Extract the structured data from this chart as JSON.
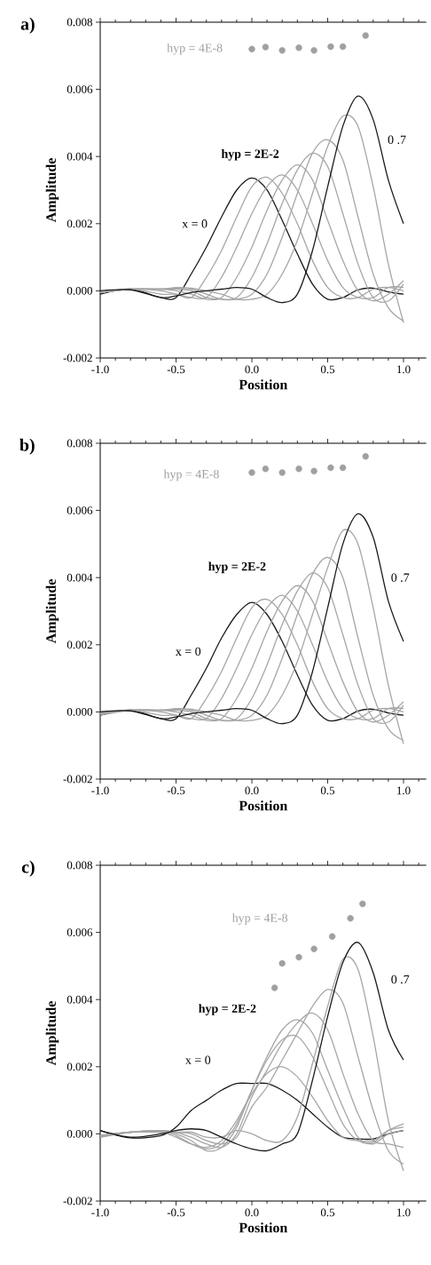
{
  "chart_data": [
    {
      "type": "line",
      "title": "a)",
      "xlabel": "Position",
      "ylabel": "Amplitude",
      "x": [
        -1,
        -0.8,
        -0.6,
        -0.5,
        -0.4,
        -0.3,
        -0.2,
        -0.1,
        0,
        0.1,
        0.2,
        0.3,
        0.4,
        0.5,
        0.6,
        0.7,
        0.8,
        0.9,
        1.0
      ],
      "xlim": [
        -1,
        1.15
      ],
      "ylim": [
        -0.002,
        0.008
      ],
      "xticks": [
        {
          "value": -1,
          "label": "-1.0"
        },
        {
          "value": -0.9,
          "label": null
        },
        {
          "value": -0.8,
          "label": null
        },
        {
          "value": -0.7,
          "label": null
        },
        {
          "value": -0.6,
          "label": null
        },
        {
          "value": -0.5,
          "label": "-0.5"
        },
        {
          "value": -0.4,
          "label": null
        },
        {
          "value": -0.3,
          "label": null
        },
        {
          "value": -0.2,
          "label": null
        },
        {
          "value": -0.1,
          "label": null
        },
        {
          "value": 0,
          "label": "0.0"
        },
        {
          "value": 0.1,
          "label": null
        },
        {
          "value": 0.2,
          "label": null
        },
        {
          "value": 0.3,
          "label": null
        },
        {
          "value": 0.4,
          "label": null
        },
        {
          "value": 0.5,
          "label": "0.5"
        },
        {
          "value": 0.6,
          "label": null
        },
        {
          "value": 0.7,
          "label": null
        },
        {
          "value": 0.8,
          "label": null
        },
        {
          "value": 0.9,
          "label": null
        },
        {
          "value": 1.0,
          "label": "1.0"
        },
        {
          "value": 1.1,
          "label": null
        }
      ],
      "yticks": [
        {
          "value": -0.002,
          "label": "-0.002"
        },
        {
          "value": 0,
          "label": "0.000"
        },
        {
          "value": 0.002,
          "label": "0.002"
        },
        {
          "value": 0.004,
          "label": "0.004"
        },
        {
          "value": 0.006,
          "label": "0.006"
        },
        {
          "value": 0.008,
          "label": "0.008"
        }
      ],
      "series": [
        {
          "color": "#1a1a1a",
          "values": [
            -0.0001,
            5e-05,
            -0.0002,
            -0.0002,
            0.0005,
            0.0013,
            0.0022,
            0.003,
            0.00336,
            0.003,
            0.0021,
            0.0011,
            0.0002,
            -0.00025,
            -0.0002,
            3e-05,
            8e-05,
            -3e-05,
            -0.0001
          ]
        },
        {
          "color": "#a6a6a6",
          "values": [
            -5e-05,
            5e-05,
            -0.0001,
            -0.0001,
            -0.0002,
            0.0004,
            0.0012,
            0.0022,
            0.0031,
            0.00338,
            0.0029,
            0.002,
            0.0009,
            0.0001,
            -0.0002,
            -0.0002,
            5e-05,
            0.0001,
            0
          ]
        },
        {
          "color": "#a6a6a6",
          "values": [
            -5e-05,
            5e-05,
            0,
            -0.0001,
            -0.0002,
            -0.0002,
            0.0004,
            0.0013,
            0.0023,
            0.0031,
            0.00345,
            0.003,
            0.002,
            0.0009,
            0.0001,
            -0.0002,
            -0.0002,
            0.0001,
            0.0001
          ]
        },
        {
          "color": "#a6a6a6",
          "values": [
            -5e-05,
            5e-05,
            5e-05,
            0,
            -0.0001,
            -0.00025,
            -0.0002,
            0.0004,
            0.0013,
            0.0024,
            0.0033,
            0.00375,
            0.0033,
            0.0021,
            0.0009,
            0,
            -0.0003,
            -0.0001,
            0.0003
          ]
        },
        {
          "color": "#a6a6a6",
          "values": [
            -5e-05,
            5e-05,
            5e-05,
            5e-05,
            0,
            -0.0002,
            -0.00025,
            -0.0002,
            0.0004,
            0.0014,
            0.0026,
            0.0036,
            0.0041,
            0.0037,
            0.0023,
            0.0008,
            -0.0002,
            -0.0003,
            0.0002
          ]
        },
        {
          "color": "#a6a6a6",
          "values": [
            -5e-05,
            5e-05,
            5e-05,
            8e-05,
            5e-05,
            -0.0001,
            -0.00025,
            -0.00025,
            -0.0001,
            0.0005,
            0.0016,
            0.0029,
            0.0041,
            0.0045,
            0.0039,
            0.0022,
            0.0005,
            -0.0005,
            -0.0009
          ]
        },
        {
          "color": "#a6a6a6",
          "values": [
            -5e-05,
            5e-05,
            5e-05,
            0.0001,
            8e-05,
            0,
            -0.0001,
            -0.00025,
            -0.00025,
            -0.0001,
            0.0005,
            0.0015,
            0.0029,
            0.0043,
            0.0052,
            0.0049,
            0.0031,
            0.0008,
            -0.00095
          ]
        },
        {
          "color": "#1a1a1a",
          "values": [
            0,
            3e-05,
            -0.0002,
            -0.00015,
            -5e-05,
            0,
            5e-05,
            0.0001,
            5e-05,
            -0.0002,
            -0.00035,
            -0.0001,
            0.0012,
            0.0031,
            0.0049,
            0.0058,
            0.0051,
            0.0033,
            0.002
          ]
        },
        {
          "type": "scatter",
          "color": "#a0a0a0",
          "x": [
            0,
            0.09,
            0.2,
            0.31,
            0.41,
            0.52,
            0.6,
            0.75
          ],
          "values": [
            0.0072,
            0.00726,
            0.00716,
            0.00724,
            0.00716,
            0.00727,
            0.00727,
            0.0076
          ]
        }
      ],
      "annotations": [
        "hyp = 2E-2",
        "x = 0",
        "0 .7",
        "hyp = 4E-8"
      ]
    },
    {
      "type": "line",
      "title": "b)",
      "xlabel": "Position",
      "ylabel": "Amplitude",
      "x": [
        -1,
        -0.8,
        -0.6,
        -0.5,
        -0.4,
        -0.3,
        -0.2,
        -0.1,
        0,
        0.1,
        0.2,
        0.3,
        0.4,
        0.5,
        0.6,
        0.7,
        0.8,
        0.9,
        1.0
      ],
      "xlim": [
        -1,
        1.15
      ],
      "ylim": [
        -0.002,
        0.008
      ],
      "xticks": [
        {
          "value": -1,
          "label": "-1.0"
        },
        {
          "value": -0.9,
          "label": null
        },
        {
          "value": -0.8,
          "label": null
        },
        {
          "value": -0.7,
          "label": null
        },
        {
          "value": -0.6,
          "label": null
        },
        {
          "value": -0.5,
          "label": "-0.5"
        },
        {
          "value": -0.4,
          "label": null
        },
        {
          "value": -0.3,
          "label": null
        },
        {
          "value": -0.2,
          "label": null
        },
        {
          "value": -0.1,
          "label": null
        },
        {
          "value": 0,
          "label": "0.0"
        },
        {
          "value": 0.1,
          "label": null
        },
        {
          "value": 0.2,
          "label": null
        },
        {
          "value": 0.3,
          "label": null
        },
        {
          "value": 0.4,
          "label": null
        },
        {
          "value": 0.5,
          "label": "0.5"
        },
        {
          "value": 0.6,
          "label": null
        },
        {
          "value": 0.7,
          "label": null
        },
        {
          "value": 0.8,
          "label": null
        },
        {
          "value": 0.9,
          "label": null
        },
        {
          "value": 1.0,
          "label": "1.0"
        },
        {
          "value": 1.1,
          "label": null
        }
      ],
      "yticks": [
        {
          "value": -0.002,
          "label": "-0.002"
        },
        {
          "value": 0,
          "label": "0.000"
        },
        {
          "value": 0.002,
          "label": "0.002"
        },
        {
          "value": 0.004,
          "label": "0.004"
        },
        {
          "value": 0.006,
          "label": "0.006"
        },
        {
          "value": 0.008,
          "label": "0.008"
        }
      ],
      "series": [
        {
          "color": "#1a1a1a",
          "values": [
            -0.0001,
            5e-05,
            -0.0002,
            -0.0002,
            0.0005,
            0.0013,
            0.0022,
            0.0029,
            0.00326,
            0.0029,
            0.0021,
            0.0011,
            0.0002,
            -0.00025,
            -0.0002,
            3e-05,
            8e-05,
            -3e-05,
            -0.0001
          ]
        },
        {
          "color": "#a6a6a6",
          "values": [
            -5e-05,
            5e-05,
            -0.0001,
            -0.0001,
            -0.0002,
            0.0004,
            0.0012,
            0.0022,
            0.0031,
            0.00335,
            0.0029,
            0.002,
            0.0009,
            0.0001,
            -0.0002,
            -0.0002,
            5e-05,
            0.0001,
            0
          ]
        },
        {
          "color": "#a6a6a6",
          "values": [
            -5e-05,
            5e-05,
            0,
            -0.0001,
            -0.0002,
            -0.0002,
            0.0004,
            0.0013,
            0.0023,
            0.0031,
            0.00347,
            0.003,
            0.002,
            0.0009,
            0.0001,
            -0.0002,
            -0.0002,
            0.0001,
            0.0001
          ]
        },
        {
          "color": "#a6a6a6",
          "values": [
            -5e-05,
            5e-05,
            5e-05,
            0,
            -0.0001,
            -0.00025,
            -0.0002,
            0.0004,
            0.0013,
            0.0024,
            0.0033,
            0.00376,
            0.0033,
            0.0021,
            0.0009,
            0,
            -0.0003,
            -0.0001,
            0.0003
          ]
        },
        {
          "color": "#a6a6a6",
          "values": [
            -5e-05,
            5e-05,
            5e-05,
            5e-05,
            0,
            -0.0002,
            -0.00025,
            -0.0002,
            0.0004,
            0.0014,
            0.0026,
            0.0036,
            0.00414,
            0.0037,
            0.0023,
            0.0008,
            -0.0002,
            -0.0003,
            0.0002
          ]
        },
        {
          "color": "#a6a6a6",
          "values": [
            0,
            5e-05,
            5e-05,
            8e-05,
            5e-05,
            -0.0001,
            -0.00025,
            -0.00025,
            -0.0001,
            0.0005,
            0.0016,
            0.0029,
            0.0041,
            0.0046,
            0.004,
            0.0022,
            0.0005,
            -0.0005,
            -0.00085
          ]
        },
        {
          "color": "#a6a6a6",
          "values": [
            -0.0001,
            5e-05,
            5e-05,
            0.0001,
            8e-05,
            0,
            -0.0001,
            -0.00025,
            -0.00025,
            -0.0001,
            0.0005,
            0.0015,
            0.0029,
            0.0043,
            0.0054,
            0.005,
            0.0031,
            0.0008,
            -0.00095
          ]
        },
        {
          "color": "#1a1a1a",
          "values": [
            0,
            3e-05,
            -0.0002,
            -0.00015,
            -5e-05,
            0,
            5e-05,
            0.0001,
            5e-05,
            -0.0002,
            -0.00035,
            -0.0001,
            0.0012,
            0.0031,
            0.005,
            0.0059,
            0.0052,
            0.0033,
            0.0021
          ]
        },
        {
          "type": "scatter",
          "color": "#a0a0a0",
          "x": [
            0,
            0.09,
            0.2,
            0.31,
            0.41,
            0.52,
            0.6,
            0.75
          ],
          "values": [
            0.00713,
            0.00724,
            0.00713,
            0.00724,
            0.00717,
            0.00727,
            0.00727,
            0.00761
          ]
        }
      ],
      "annotations": [
        "hyp = 2E-2",
        "x = 0",
        "0 .7",
        "hyp = 4E-8"
      ]
    },
    {
      "type": "line",
      "title": "c)",
      "xlabel": "Position",
      "ylabel": "Amplitude",
      "x": [
        -1,
        -0.8,
        -0.6,
        -0.5,
        -0.4,
        -0.3,
        -0.2,
        -0.1,
        0,
        0.1,
        0.2,
        0.3,
        0.4,
        0.5,
        0.6,
        0.7,
        0.8,
        0.9,
        1.0
      ],
      "xlim": [
        -1,
        1.15
      ],
      "ylim": [
        -0.002,
        0.008
      ],
      "xticks": [
        {
          "value": -1,
          "label": "-1.0"
        },
        {
          "value": -0.9,
          "label": null
        },
        {
          "value": -0.8,
          "label": null
        },
        {
          "value": -0.7,
          "label": null
        },
        {
          "value": -0.6,
          "label": null
        },
        {
          "value": -0.5,
          "label": "-0.5"
        },
        {
          "value": -0.4,
          "label": null
        },
        {
          "value": -0.3,
          "label": null
        },
        {
          "value": -0.2,
          "label": null
        },
        {
          "value": -0.1,
          "label": null
        },
        {
          "value": 0,
          "label": "0.0"
        },
        {
          "value": 0.1,
          "label": null
        },
        {
          "value": 0.2,
          "label": null
        },
        {
          "value": 0.3,
          "label": null
        },
        {
          "value": 0.4,
          "label": null
        },
        {
          "value": 0.5,
          "label": "0.5"
        },
        {
          "value": 0.6,
          "label": null
        },
        {
          "value": 0.7,
          "label": null
        },
        {
          "value": 0.8,
          "label": null
        },
        {
          "value": 0.9,
          "label": null
        },
        {
          "value": 1.0,
          "label": "1.0"
        },
        {
          "value": 1.1,
          "label": null
        }
      ],
      "yticks": [
        {
          "value": -0.002,
          "label": "-0.002"
        },
        {
          "value": 0,
          "label": "0.000"
        },
        {
          "value": 0.002,
          "label": "0.002"
        },
        {
          "value": 0.004,
          "label": "0.004"
        },
        {
          "value": 0.006,
          "label": "0.006"
        },
        {
          "value": 0.008,
          "label": "0.008"
        }
      ],
      "series": [
        {
          "color": "#1a1a1a",
          "values": [
            0.0001,
            -0.00012,
            -5e-05,
            0.0002,
            0.0007,
            0.001,
            0.0013,
            0.0015,
            0.0015,
            0.0015,
            0.0013,
            0.001,
            0.0006,
            0.0002,
            -0.0001,
            -0.00015,
            -0.00015,
            0,
            0.0001
          ]
        },
        {
          "color": "#a6a6a6",
          "values": [
            -5e-05,
            5e-05,
            5e-05,
            -0.0001,
            -0.0003,
            -0.0004,
            -0.0002,
            0.0004,
            0.0012,
            0.0018,
            0.002,
            0.0017,
            0.0011,
            0.0004,
            -0.0001,
            -0.0002,
            -0.0002,
            0.0001,
            0.0002
          ]
        },
        {
          "color": "#a6a6a6",
          "values": [
            -0.0001,
            5e-05,
            8e-05,
            -5e-05,
            -0.0003,
            -0.00045,
            -0.0003,
            0.0003,
            0.0013,
            0.0022,
            0.0028,
            0.0029,
            0.0023,
            0.0013,
            0.0003,
            -0.0002,
            -0.00025,
            0.0001,
            0.0003
          ]
        },
        {
          "color": "#a6a6a6",
          "values": [
            -0.0001,
            5e-05,
            0.0001,
            0,
            -0.0002,
            -0.0005,
            -0.0004,
            0.0002,
            0.0013,
            0.0023,
            0.0031,
            0.0034,
            0.003,
            0.0019,
            0.0008,
            -0.0001,
            -0.0003,
            0,
            0.0001
          ]
        },
        {
          "color": "#a6a6a6",
          "values": [
            -5e-05,
            5e-05,
            0.0001,
            5e-05,
            -0.0001,
            -0.0003,
            -0.0004,
            0,
            0.0011,
            0.0019,
            0.0027,
            0.0033,
            0.0036,
            0.0031,
            0.0018,
            0.0006,
            -0.0002,
            -0.0003,
            -0.0004
          ]
        },
        {
          "color": "#a6a6a6",
          "values": [
            -5e-05,
            5e-05,
            0.0001,
            5e-05,
            0,
            -0.0002,
            -0.0003,
            -0.0001,
            0.0008,
            0.0014,
            0.0022,
            0.003,
            0.0038,
            0.0043,
            0.0039,
            0.0023,
            0.0007,
            -0.0005,
            -0.0009
          ]
        },
        {
          "color": "#a6a6a6",
          "values": [
            -5e-05,
            5e-05,
            5e-05,
            5e-05,
            5e-05,
            -0.0001,
            -0.0001,
            0.0001,
            0,
            -0.0002,
            -0.0002,
            0.0005,
            0.0021,
            0.0038,
            0.0052,
            0.0049,
            0.0029,
            0.0004,
            -0.0011
          ]
        },
        {
          "color": "#1a1a1a",
          "values": [
            0.0001,
            -0.0001,
            0,
            0.0001,
            0.00015,
            0.0001,
            -0.0001,
            -0.0003,
            -0.00045,
            -0.0005,
            -0.0003,
            0,
            0.0016,
            0.0035,
            0.0051,
            0.0057,
            0.0048,
            0.0031,
            0.0022
          ]
        },
        {
          "type": "scatter",
          "color": "#a0a0a0",
          "x": [
            0.15,
            0.2,
            0.31,
            0.41,
            0.53,
            0.65,
            0.73
          ],
          "values": [
            0.00435,
            0.00508,
            0.00526,
            0.00551,
            0.00588,
            0.00642,
            0.00685
          ]
        }
      ],
      "annotations": [
        "hyp = 2E-2",
        "x = 0",
        "0 .7",
        "hyp = 4E-8"
      ]
    }
  ]
}
